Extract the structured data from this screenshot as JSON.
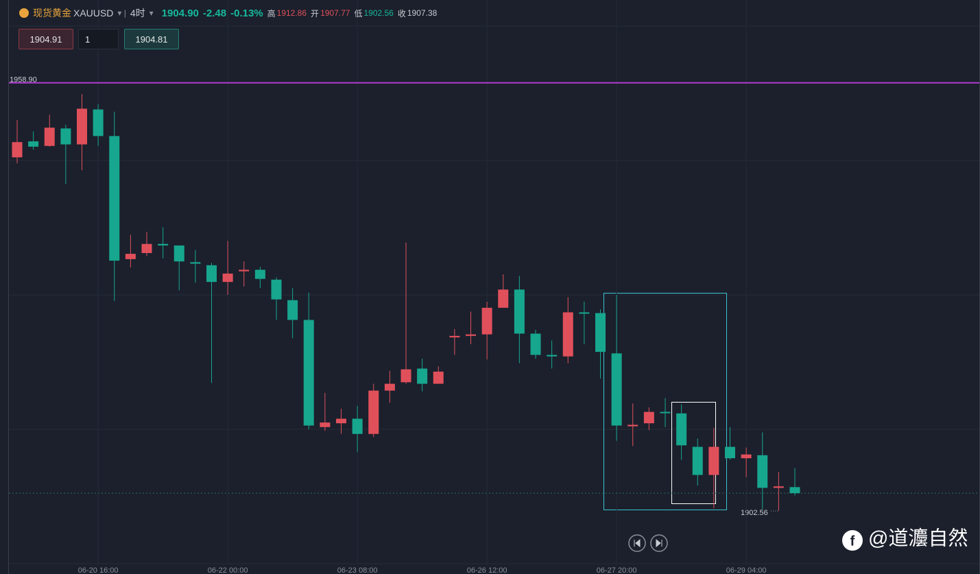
{
  "header": {
    "symbol_name": "现货黄金",
    "symbol": "XAUUSD",
    "interval": "4时",
    "price": "1904.90",
    "change": "-2.48",
    "change_pct": "-0.13%",
    "high_label": "高",
    "high": "1912.86",
    "open_label": "开",
    "open": "1907.77",
    "low_label": "低",
    "low": "1902.56",
    "close_label": "收",
    "close": "1907.38"
  },
  "trade": {
    "sell": "1904.91",
    "quantity": "1",
    "buy": "1904.81"
  },
  "watermark": "@道灋自然",
  "chart_data": {
    "type": "candlestick",
    "categories": [
      null,
      null,
      null,
      null,
      null,
      "06-20 16:00",
      null,
      null,
      null,
      null,
      null,
      null,
      null,
      "06-22 00:00",
      null,
      null,
      null,
      null,
      null,
      null,
      null,
      "06-23 08:00",
      null,
      null,
      null,
      null,
      null,
      null,
      null,
      "06-26 12:00",
      null,
      null,
      null,
      null,
      null,
      null,
      null,
      "06-27 20:00",
      null,
      null,
      null,
      null,
      null,
      null,
      null,
      "06-29 04:00",
      null,
      null,
      null
    ],
    "open": [
      1949.1,
      1951.2,
      1950.6,
      1952.9,
      1950.8,
      1955.4,
      1951.9,
      1935.7,
      1936.5,
      1937.7,
      1937.5,
      1935.3,
      1934.9,
      1932.7,
      1934.1,
      1934.3,
      1933.0,
      1930.3,
      1927.7,
      1913.6,
      1914.1,
      1914.7,
      1912.7,
      1918.4,
      1919.5,
      1921.3,
      1919.3,
      1925.4,
      1925.6,
      1925.8,
      1929.3,
      1931.7,
      1925.9,
      1923.1,
      1922.9,
      1928.7,
      1928.6,
      1923.3,
      1913.7,
      1914.1,
      1915.6,
      1915.4,
      1911.0,
      1907.3,
      1911.0,
      1909.5,
      1909.9,
      1905.6,
      1905.7
    ],
    "high": [
      1954.0,
      1952.5,
      1954.7,
      1953.4,
      1957.4,
      1956.1,
      1955.1,
      1938.9,
      1939.3,
      1939.9,
      1937.5,
      1936.9,
      1935.2,
      1938.1,
      1935.4,
      1934.7,
      1933.3,
      1931.9,
      1931.3,
      1918.1,
      1916.0,
      1916.4,
      1919.3,
      1921.0,
      1937.9,
      1922.6,
      1921.6,
      1926.5,
      1928.8,
      1930.1,
      1933.7,
      1933.5,
      1926.4,
      1925.0,
      1930.7,
      1930.1,
      1929.1,
      1931.0,
      1916.7,
      1916.2,
      1917.4,
      1916.6,
      1912.1,
      1913.5,
      1913.6,
      1910.9,
      1912.9,
      1907.7,
      1908.2
    ],
    "low": [
      1948.3,
      1950.1,
      1950.5,
      1945.6,
      1947.4,
      1950.6,
      1930.2,
      1934.6,
      1936.1,
      1935.8,
      1931.6,
      1932.6,
      1919.4,
      1931.0,
      1932.1,
      1931.9,
      1927.7,
      1925.3,
      1913.3,
      1913.1,
      1912.7,
      1910.3,
      1912.3,
      1916.8,
      1919.3,
      1918.3,
      1919.3,
      1923.1,
      1924.5,
      1922.5,
      1929.3,
      1922.0,
      1922.6,
      1921.3,
      1922.0,
      1924.5,
      1920.0,
      1911.8,
      1911.1,
      1913.2,
      1913.6,
      1909.3,
      1905.9,
      1902.9,
      1909.3,
      1907.0,
      1902.8,
      1902.56,
      1904.6
    ],
    "close": [
      1951.1,
      1950.5,
      1953.0,
      1950.8,
      1955.5,
      1951.9,
      1935.5,
      1936.4,
      1937.7,
      1937.5,
      1935.4,
      1935.1,
      1932.7,
      1933.8,
      1934.3,
      1933.1,
      1930.4,
      1927.7,
      1913.8,
      1914.2,
      1914.7,
      1912.7,
      1918.4,
      1919.3,
      1921.2,
      1919.3,
      1920.9,
      1925.6,
      1925.8,
      1929.3,
      1931.7,
      1925.9,
      1923.1,
      1922.9,
      1928.7,
      1928.6,
      1923.5,
      1913.8,
      1913.9,
      1915.6,
      1915.5,
      1911.2,
      1907.3,
      1911.0,
      1909.5,
      1910.0,
      1905.6,
      1905.8,
      1904.9
    ],
    "up_color": "#e0505b",
    "down_color": "#17a68e",
    "ylim": [
      1895.8,
      1968.9
    ],
    "level_line": {
      "value": 1958.9,
      "label": "1958.90"
    },
    "level_color": "#b13bd0",
    "min_marker": 1902.56,
    "last_price_line": 1904.9
  }
}
